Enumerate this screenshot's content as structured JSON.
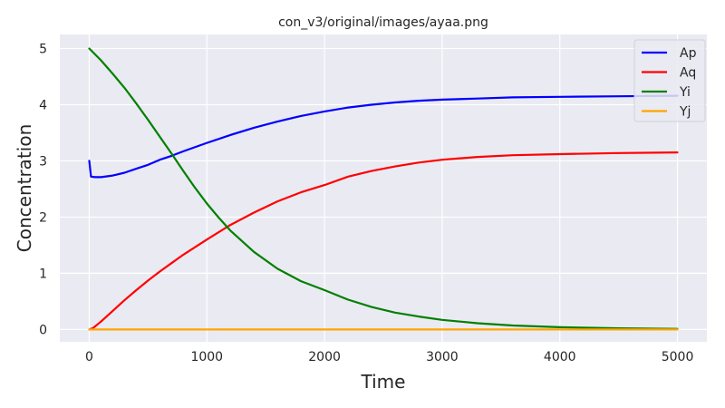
{
  "chart_data": {
    "type": "line",
    "title": "con_v3/original/images/ayaa.png",
    "xlabel": "Time",
    "ylabel": "Concentration",
    "xlim": [
      -250,
      5250
    ],
    "ylim": [
      -0.22,
      5.25
    ],
    "xticks": [
      0,
      1000,
      2000,
      3000,
      4000,
      5000
    ],
    "yticks": [
      0,
      1,
      2,
      3,
      4,
      5
    ],
    "grid": true,
    "legend_position": "top-right",
    "background": "#eaeaf2",
    "series": [
      {
        "name": "Ap",
        "color": "#0000ff",
        "x": [
          0,
          15,
          50,
          100,
          200,
          300,
          400,
          500,
          600,
          700,
          800,
          1000,
          1200,
          1400,
          1600,
          1800,
          2000,
          2200,
          2400,
          2600,
          2800,
          3000,
          3300,
          3600,
          4000,
          4500,
          5000
        ],
        "y": [
          3.0,
          2.72,
          2.71,
          2.71,
          2.74,
          2.79,
          2.86,
          2.93,
          3.02,
          3.09,
          3.17,
          3.32,
          3.46,
          3.59,
          3.7,
          3.8,
          3.88,
          3.95,
          4.0,
          4.04,
          4.07,
          4.09,
          4.11,
          4.13,
          4.14,
          4.15,
          4.16
        ]
      },
      {
        "name": "Aq",
        "color": "#ff0000",
        "x": [
          0,
          30,
          100,
          200,
          300,
          400,
          500,
          600,
          700,
          800,
          1000,
          1200,
          1400,
          1600,
          1800,
          2000,
          2200,
          2400,
          2600,
          2800,
          3000,
          3300,
          3600,
          4000,
          4500,
          5000
        ],
        "y": [
          0.0,
          0.02,
          0.14,
          0.33,
          0.52,
          0.7,
          0.87,
          1.03,
          1.18,
          1.33,
          1.6,
          1.86,
          2.08,
          2.28,
          2.44,
          2.57,
          2.72,
          2.82,
          2.9,
          2.97,
          3.02,
          3.07,
          3.1,
          3.12,
          3.14,
          3.15
        ]
      },
      {
        "name": "Yi",
        "color": "#008000",
        "x": [
          0,
          100,
          200,
          300,
          400,
          500,
          600,
          700,
          800,
          900,
          1000,
          1100,
          1200,
          1400,
          1600,
          1800,
          2000,
          2200,
          2400,
          2600,
          2800,
          3000,
          3300,
          3600,
          4000,
          4500,
          5000
        ],
        "y": [
          5.0,
          4.79,
          4.55,
          4.3,
          4.02,
          3.73,
          3.43,
          3.13,
          2.82,
          2.52,
          2.24,
          1.99,
          1.76,
          1.38,
          1.08,
          0.86,
          0.7,
          0.53,
          0.4,
          0.3,
          0.23,
          0.17,
          0.11,
          0.07,
          0.04,
          0.02,
          0.01
        ]
      },
      {
        "name": "Yj",
        "color": "#ffa500",
        "x": [
          0,
          5000
        ],
        "y": [
          0.0,
          0.0
        ]
      }
    ]
  }
}
